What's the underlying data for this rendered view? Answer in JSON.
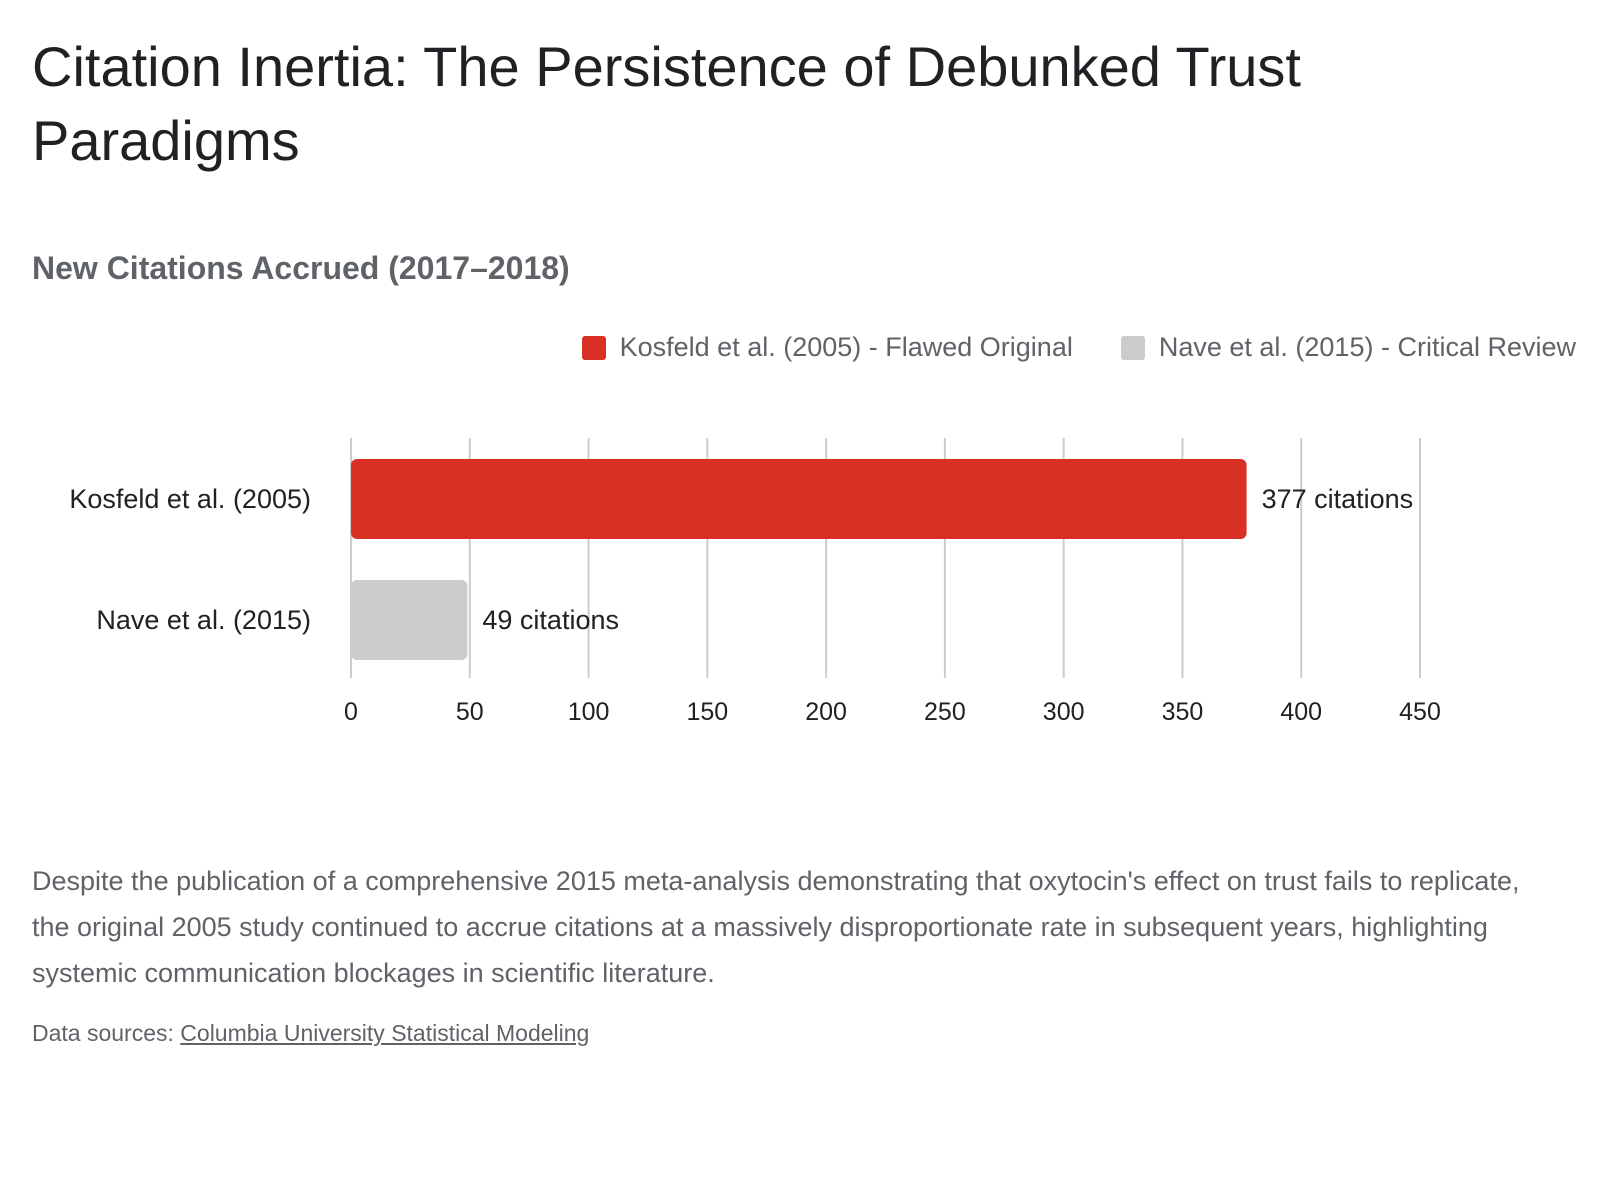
{
  "title": "Citation Inertia: The Persistence of Debunked Trust Paradigms",
  "chart_data": {
    "type": "bar",
    "orientation": "horizontal",
    "subtitle": "New Citations Accrued (2017–2018)",
    "categories": [
      "Kosfeld et al. (2005)",
      "Nave et al. (2015)"
    ],
    "values": [
      377,
      49
    ],
    "data_labels": [
      "377 citations",
      "49 citations"
    ],
    "colors": [
      "#d93025",
      "#cccccc"
    ],
    "legend": {
      "placement": "top-right",
      "entries": [
        {
          "label": "Kosfeld et al. (2005) - Flawed Original",
          "color": "#d93025"
        },
        {
          "label": "Nave et al. (2015) - Critical Review",
          "color": "#cccccc"
        }
      ]
    },
    "xlim": [
      0,
      450
    ],
    "x_ticks": [
      0,
      50,
      100,
      150,
      200,
      250,
      300,
      350,
      400,
      450
    ],
    "grid": true,
    "xlabel": "",
    "ylabel": ""
  },
  "description": "Despite the publication of a comprehensive 2015 meta-analysis demonstrating that oxytocin's effect on trust fails to replicate, the original 2005 study continued to accrue citations at a massively disproportionate rate in subsequent years, highlighting systemic communication blockages in scientific literature.",
  "sources": {
    "prefix": "Data sources: ",
    "link_text": "Columbia University Statistical Modeling"
  },
  "colors": {
    "text": "#202124",
    "muted": "#5f6368",
    "grid": "#cccccc"
  }
}
